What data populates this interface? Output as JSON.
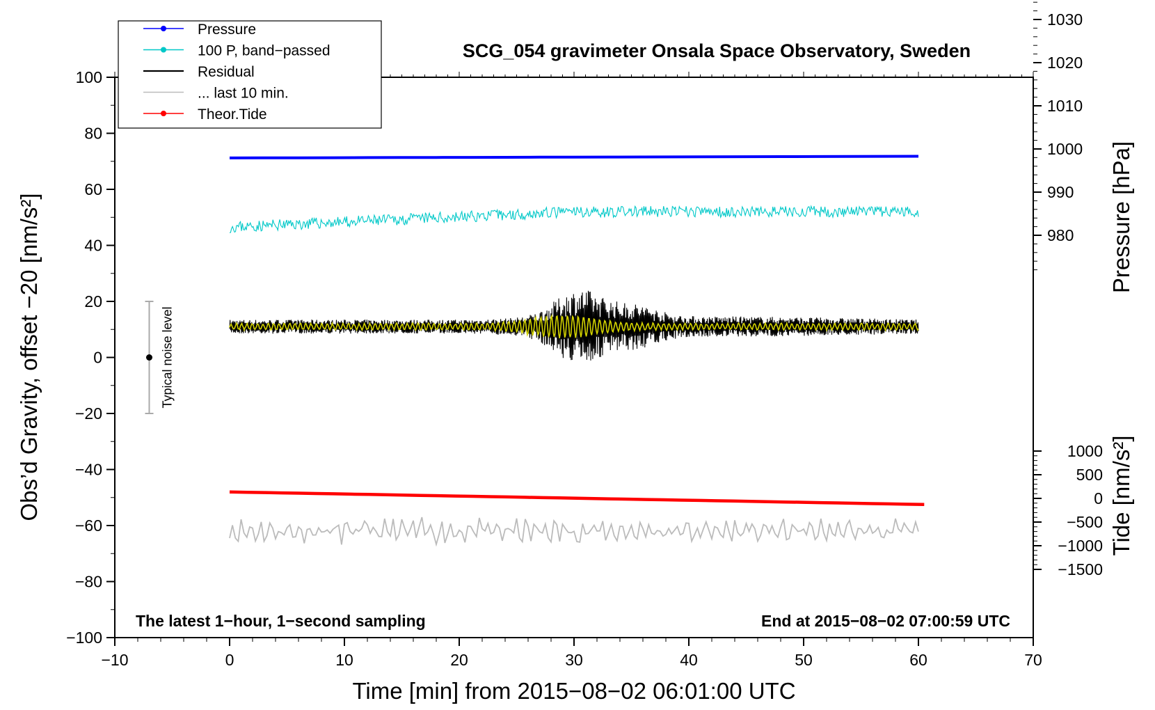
{
  "chart_data": {
    "type": "line",
    "title": "SCG_054 gravimeter Onsala Space Observatory, Sweden",
    "xlabel": "Time [min] from 2015−08−02 06:01:00 UTC",
    "ylabel_left": "Obs’d Gravity, offset −20 [nm/s²]",
    "ylabel_right_top": "Pressure [hPa]",
    "ylabel_right_bottom": "Tide [nm/s²]",
    "xlim": [
      -10,
      70
    ],
    "ylim_left": [
      -100,
      100
    ],
    "ylim_pressure": [
      970,
      1035
    ],
    "ylim_tide": [
      -1500,
      1500
    ],
    "x_ticks": [
      -10,
      0,
      10,
      20,
      30,
      40,
      50,
      60,
      70
    ],
    "x_tick_labels": [
      "−10",
      "0",
      "10",
      "20",
      "30",
      "40",
      "50",
      "60",
      "70"
    ],
    "y_ticks_left": [
      100,
      80,
      60,
      40,
      20,
      0,
      -20,
      -40,
      -60,
      -80,
      -100
    ],
    "y_tick_labels_left": [
      "100",
      "80",
      "60",
      "40",
      "20",
      "0",
      "−20",
      "−40",
      "−60",
      "−80",
      "−100"
    ],
    "y_ticks_pressure": [
      1030,
      1020,
      1010,
      1000,
      990,
      980
    ],
    "y_tick_labels_pressure": [
      "1030",
      "1020",
      "1010",
      "1000",
      "990",
      "980"
    ],
    "y_ticks_tide": [
      1000,
      500,
      0,
      -500,
      -1000,
      -1500
    ],
    "y_tick_labels_tide": [
      "1000",
      "500",
      "0",
      "−500",
      "−1000",
      "−1500"
    ],
    "legend": {
      "position": "top-left",
      "entries": [
        {
          "label": "Pressure",
          "color": "#0000ff",
          "marker": true
        },
        {
          "label": "100 P, band−passed",
          "color": "#00c8c8",
          "marker": true
        },
        {
          "label": "Residual",
          "color": "#000000",
          "marker": false
        },
        {
          "label": "... last 10 min.",
          "color": "#bbbbbb",
          "marker": false
        },
        {
          "label": "Theor.Tide",
          "color": "#ff0000",
          "marker": true
        }
      ]
    },
    "annotations": {
      "bottom_left": "The latest 1−hour, 1−second sampling",
      "bottom_right": "End at 2015−08−02 07:00:59 UTC"
    },
    "noise_bar": {
      "x": -7,
      "center": 0,
      "low": -20,
      "high": 20,
      "label": "Typical noise level"
    },
    "series": [
      {
        "name": "Pressure",
        "color": "#0000ff",
        "axis": "left",
        "x_range": [
          0,
          60
        ],
        "start": 71.2,
        "end": 71.8,
        "noise_amplitude": 0.2
      },
      {
        "name": "100 P, band-passed",
        "color": "#00c8c8",
        "axis": "left",
        "x_range": [
          0,
          60
        ],
        "start": 46.5,
        "end": 52.0,
        "noise_amplitude": 2.0
      },
      {
        "name": "Residual",
        "color": "#000000",
        "axis": "left",
        "x_range": [
          0,
          60
        ],
        "baseline": 11,
        "quiet_amplitude": 2.5,
        "burst_center": 30.5,
        "burst_amplitude": 10
      },
      {
        "name": "Residual filtered",
        "color": "#d4d400",
        "axis": "left",
        "x_range": [
          0,
          60
        ],
        "baseline": 11,
        "amplitude": 1.0,
        "burst_center": 29,
        "burst_amplitude": 3
      },
      {
        "name": "... last 10 min.",
        "color": "#bbbbbb",
        "axis": "left",
        "x_range": [
          0,
          60
        ],
        "baseline": -62,
        "amplitude": 2.5
      },
      {
        "name": "Theor.Tide",
        "color": "#ff0000",
        "axis": "left",
        "x_range": [
          0,
          60.5
        ],
        "start": -48,
        "end": -52.5
      }
    ]
  }
}
